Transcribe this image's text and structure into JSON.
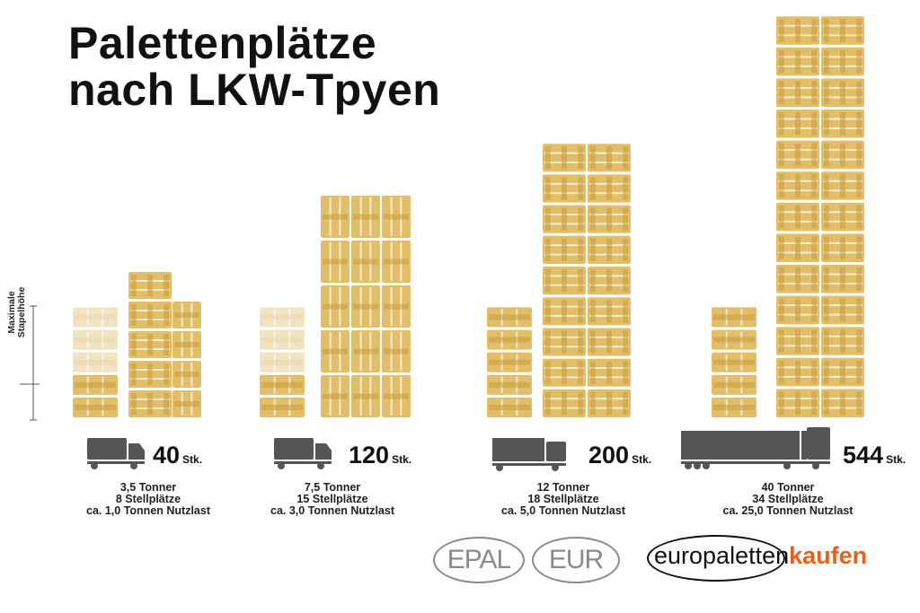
{
  "title": {
    "line1": "Palettenplätze",
    "line2": "nach LKW-Tpyen"
  },
  "stack_label": {
    "line1": "Maximale",
    "line2": "Stapelhöhe"
  },
  "unit": "Stk.",
  "colors": {
    "pallet": "#e2be68",
    "pallet_dark": "#c79a3e",
    "pallet_faded": "#f1e4c3",
    "truck": "#555555",
    "accent": "#e8601c"
  },
  "chart_data": {
    "type": "bar",
    "title": "Palettenplätze nach LKW-Tpyen",
    "categories": [
      "3,5 Tonner",
      "7,5 Tonner",
      "12 Tonner",
      "40 Tonner"
    ],
    "series": [
      {
        "name": "Stk.",
        "values": [
          40,
          120,
          200,
          544
        ]
      }
    ],
    "groups": [
      {
        "count": 40,
        "line1": "3,5 Tonner",
        "line2": "8 Stellplätze",
        "line3": "ca. 1,0 Tonnen Nutzlast",
        "truck": "van",
        "front_layers": 4,
        "stack_columns": [
          {
            "cols": 1,
            "layers": 5,
            "dir": "h"
          },
          {
            "cols": 1,
            "layers": 4,
            "dir": "v"
          }
        ]
      },
      {
        "count": 120,
        "line1": "7,5 Tonner",
        "line2": "15 Stellplätze",
        "line3": "ca. 3,0 Tonnen Nutzlast",
        "truck": "van",
        "front_layers": 4,
        "stack_columns": [
          {
            "cols": 3,
            "layers": 5,
            "dir": "v"
          }
        ]
      },
      {
        "count": 200,
        "line1": "12 Tonner",
        "line2": "18 Stellplätze",
        "line3": "ca. 5,0 Tonnen Nutzlast",
        "truck": "truck",
        "front_layers": 4,
        "stack_columns": [
          {
            "cols": 2,
            "layers": 9,
            "dir": "h"
          }
        ]
      },
      {
        "count": 544,
        "line1": "40 Tonner",
        "line2": "34 Stellplätze",
        "line3": "ca. 25,0 Tonnen Nutzlast",
        "truck": "trailer",
        "front_layers": 4,
        "stack_columns": [
          {
            "cols": 2,
            "layers": 13,
            "dir": "h"
          }
        ]
      }
    ]
  },
  "logos": {
    "epal": "EPAL",
    "eur": "EUR",
    "brand_part1": "europaletten",
    "brand_part2": "kaufen"
  }
}
